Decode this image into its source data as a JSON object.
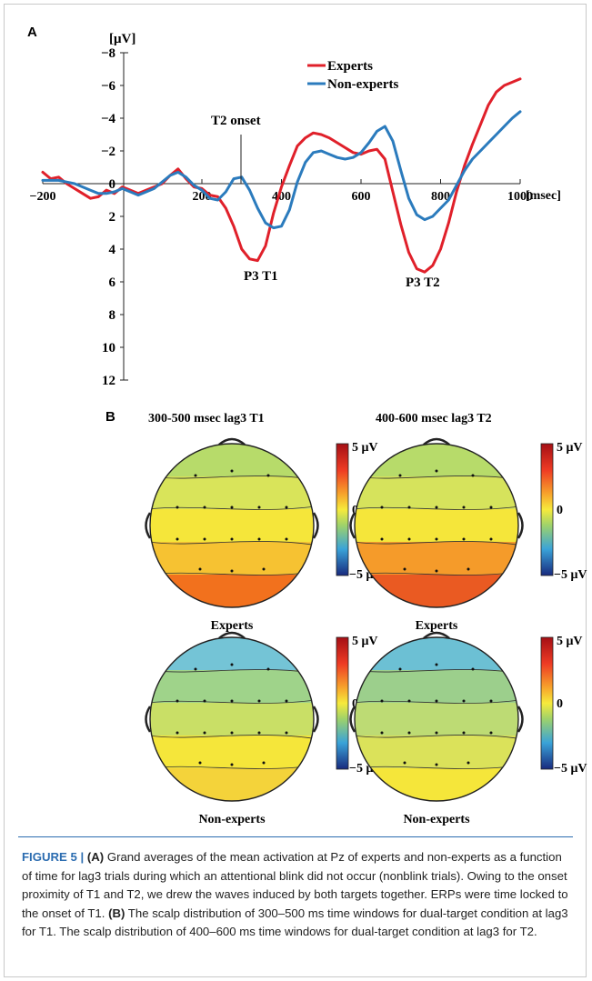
{
  "panel_a_label": "A",
  "panel_b_label": "B",
  "chart_data": {
    "type": "line",
    "title": "",
    "ylabel": "[μV]",
    "xlabel": "[msec]",
    "x_ticks": [
      "−200",
      "200",
      "400",
      "600",
      "800",
      "1000"
    ],
    "y_ticks": [
      "−8",
      "−6",
      "−4",
      "−2",
      "0",
      "2",
      "4",
      "6",
      "8",
      "10",
      "12"
    ],
    "xlim": [
      -200,
      1000
    ],
    "ylim": [
      -8,
      12
    ],
    "y_inverted": true,
    "legend_position": "top-right",
    "series": [
      {
        "name": "Experts",
        "color": "#e0202a",
        "x": [
          -200,
          -180,
          -160,
          -140,
          -120,
          -100,
          -80,
          -60,
          -40,
          -20,
          0,
          20,
          40,
          60,
          80,
          100,
          120,
          140,
          160,
          180,
          200,
          220,
          240,
          260,
          280,
          300,
          320,
          340,
          360,
          380,
          400,
          420,
          440,
          460,
          480,
          500,
          520,
          540,
          560,
          580,
          600,
          620,
          640,
          660,
          680,
          700,
          720,
          740,
          760,
          780,
          800,
          820,
          840,
          860,
          880,
          900,
          920,
          940,
          960,
          980,
          1000
        ],
        "values": [
          -0.7,
          -0.3,
          -0.4,
          0.0,
          0.3,
          0.6,
          0.9,
          0.8,
          0.4,
          0.6,
          0.2,
          0.4,
          0.6,
          0.4,
          0.2,
          0.0,
          -0.5,
          -0.9,
          -0.3,
          0.2,
          0.3,
          0.7,
          0.8,
          1.5,
          2.6,
          4.0,
          4.6,
          4.7,
          3.8,
          1.8,
          0.2,
          -1.1,
          -2.3,
          -2.8,
          -3.1,
          -3.0,
          -2.8,
          -2.5,
          -2.2,
          -1.9,
          -1.8,
          -2.0,
          -2.1,
          -1.5,
          0.5,
          2.5,
          4.2,
          5.2,
          5.4,
          5.0,
          4.0,
          2.4,
          0.5,
          -1.1,
          -2.4,
          -3.6,
          -4.8,
          -5.6,
          -6.0,
          -6.2,
          -6.4
        ]
      },
      {
        "name": "Non-experts",
        "color": "#2b7bbd",
        "x": [
          -200,
          -180,
          -160,
          -140,
          -120,
          -100,
          -80,
          -60,
          -40,
          -20,
          0,
          20,
          40,
          60,
          80,
          100,
          120,
          140,
          160,
          180,
          200,
          220,
          240,
          260,
          280,
          300,
          320,
          340,
          360,
          380,
          400,
          420,
          440,
          460,
          480,
          500,
          520,
          540,
          560,
          580,
          600,
          620,
          640,
          660,
          680,
          700,
          720,
          740,
          760,
          780,
          800,
          820,
          840,
          860,
          880,
          900,
          920,
          940,
          960,
          980,
          1000
        ],
        "values": [
          -0.2,
          -0.2,
          -0.2,
          -0.1,
          0.0,
          0.2,
          0.4,
          0.6,
          0.6,
          0.5,
          0.3,
          0.5,
          0.7,
          0.5,
          0.3,
          -0.1,
          -0.5,
          -0.7,
          -0.4,
          0.1,
          0.4,
          0.9,
          1.0,
          0.5,
          -0.3,
          -0.4,
          0.4,
          1.5,
          2.4,
          2.7,
          2.6,
          1.6,
          -0.1,
          -1.3,
          -1.9,
          -2.0,
          -1.8,
          -1.6,
          -1.5,
          -1.6,
          -1.9,
          -2.5,
          -3.2,
          -3.5,
          -2.6,
          -0.8,
          0.9,
          1.9,
          2.2,
          2.0,
          1.5,
          1.0,
          0.1,
          -0.8,
          -1.5,
          -2.0,
          -2.5,
          -3.0,
          -3.5,
          -4.0,
          -4.4
        ]
      }
    ],
    "annotations": [
      "T2 onset",
      "P3 T1",
      "P3 T2"
    ]
  },
  "scalp_maps": {
    "colorbar_labels": {
      "max": "5 μV",
      "mid": "0",
      "min": "−5 μV"
    },
    "colors": {
      "red": "#c0151c",
      "orange": "#f2711d",
      "yellow": "#f5e63a",
      "green": "#b7db6a",
      "cyan": "#5ab8dd",
      "blue": "#1c2f86"
    },
    "columns": [
      {
        "title": "300-500 msec lag3 T1"
      },
      {
        "title": "400-600 msec lag3 T2"
      }
    ],
    "maps": [
      {
        "label": "Experts"
      },
      {
        "label": "Experts"
      },
      {
        "label": "Non-experts"
      },
      {
        "label": "Non-experts"
      }
    ]
  },
  "caption": {
    "figure_label": "FIGURE 5 | ",
    "a_ref": "(A)",
    "a_text": " Grand averages of the mean activation at Pz of experts and non-experts as a function of time for lag3 trials during which an attentional blink did not occur (nonblink trials). Owing to the onset proximity of T1 and T2, we drew the waves induced by both targets together. ERPs were time locked to the onset of T1. ",
    "b_ref": "(B)",
    "b_text": " The scalp distribution of 300–500 ms time windows for dual-target condition at lag3 for T1. The scalp distribution of 400–600 ms time windows for dual-target condition at lag3 for T2."
  }
}
